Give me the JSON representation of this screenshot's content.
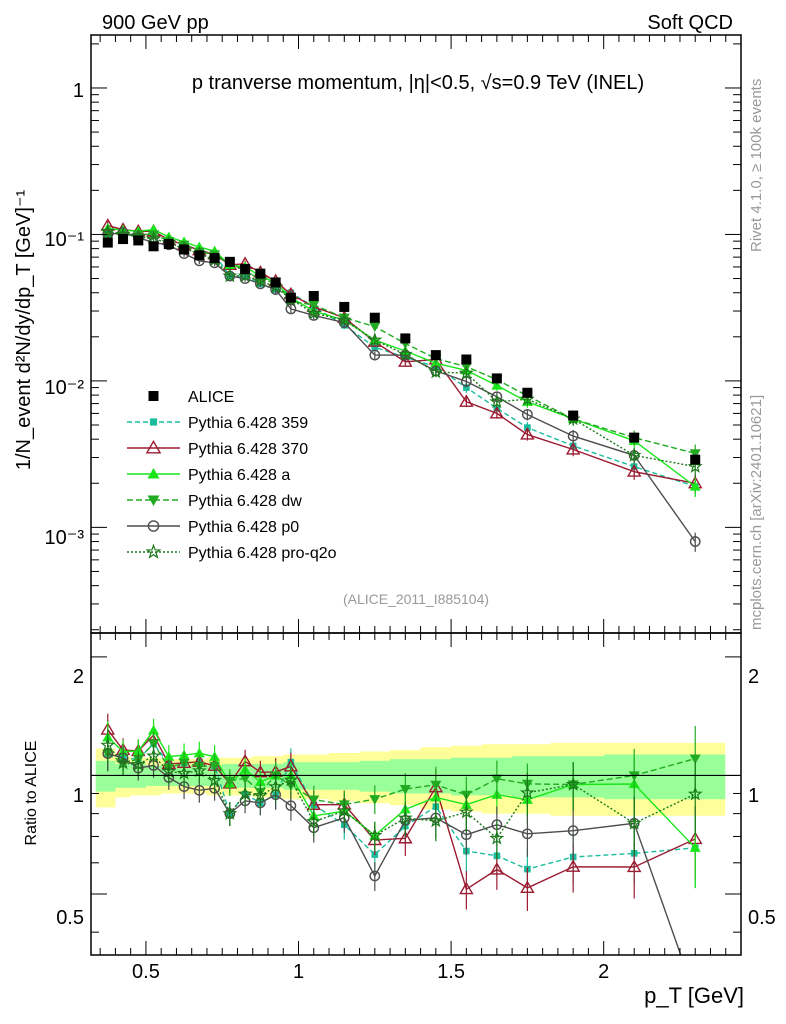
{
  "header": {
    "left": "900 GeV pp",
    "right": "Soft QCD"
  },
  "side_labels": {
    "rivet": "Rivet 4.1.0, ≥ 100k events",
    "mcplots": "mcplots.cern.ch [arXiv:2401.10621]"
  },
  "chart_data": {
    "type": "scatter",
    "title": "p tranverse momentum, |η|<0.5, √s=0.9 TeV (INEL)",
    "analysis_label": "(ALICE_2011_I885104)",
    "xlabel": "p_T [GeV]",
    "ylabel": "1/N_event d²N/dy/dp_T [GeV]⁻¹",
    "ratio_ylabel": "Ratio to ALICE",
    "xlim": [
      0.32,
      2.45
    ],
    "ylim": [
      0.00019,
      2.3
    ],
    "ratio_ylim": [
      0.35,
      2.3
    ],
    "x_ticks": [
      "0.5",
      "1",
      "1.5",
      "2"
    ],
    "y_ticks": [
      "10⁻³",
      "10⁻²",
      "10⁻¹",
      "1"
    ],
    "ratio_ticks": [
      "0.5",
      "1",
      "2"
    ],
    "x": [
      0.375,
      0.425,
      0.475,
      0.525,
      0.575,
      0.625,
      0.675,
      0.725,
      0.775,
      0.825,
      0.875,
      0.925,
      0.975,
      1.05,
      1.15,
      1.25,
      1.35,
      1.45,
      1.55,
      1.65,
      1.75,
      1.9,
      2.1,
      2.3
    ],
    "reference": {
      "name": "ALICE",
      "values": [
        0.088,
        0.093,
        0.091,
        0.083,
        0.086,
        0.079,
        0.072,
        0.069,
        0.065,
        0.058,
        0.054,
        0.047,
        0.037,
        0.038,
        0.032,
        0.027,
        0.0195,
        0.015,
        0.014,
        0.0104,
        0.0083,
        0.0058,
        0.0041,
        0.0029
      ]
    },
    "band_ratio_low": [
      0.83,
      0.88,
      0.89,
      0.89,
      0.9,
      0.9,
      0.9,
      0.89,
      0.89,
      0.89,
      0.88,
      0.88,
      0.87,
      0.87,
      0.86,
      0.85,
      0.84,
      0.82,
      0.81,
      0.8,
      0.8,
      0.79,
      0.79,
      0.79
    ],
    "band_ratio_high": [
      1.17,
      1.12,
      1.11,
      1.11,
      1.1,
      1.1,
      1.1,
      1.11,
      1.11,
      1.11,
      1.12,
      1.12,
      1.13,
      1.13,
      1.14,
      1.15,
      1.16,
      1.18,
      1.19,
      1.2,
      1.2,
      1.21,
      1.21,
      1.21
    ],
    "band_stat_low": [
      0.91,
      0.93,
      0.93,
      0.94,
      0.94,
      0.94,
      0.94,
      0.94,
      0.93,
      0.93,
      0.93,
      0.93,
      0.92,
      0.92,
      0.92,
      0.91,
      0.9,
      0.9,
      0.89,
      0.89,
      0.88,
      0.88,
      0.87,
      0.87
    ],
    "band_stat_high": [
      1.09,
      1.07,
      1.07,
      1.06,
      1.06,
      1.06,
      1.06,
      1.06,
      1.07,
      1.07,
      1.07,
      1.07,
      1.08,
      1.08,
      1.08,
      1.09,
      1.1,
      1.1,
      1.11,
      1.11,
      1.12,
      1.12,
      1.13,
      1.13
    ],
    "series": [
      {
        "name": "Pythia 6.428 359",
        "color": "#1abc9c",
        "marker": "square-small",
        "dash": "5,3",
        "values": [
          0.1,
          0.103,
          0.1,
          0.1,
          0.092,
          0.085,
          0.078,
          0.073,
          0.052,
          0.052,
          0.046,
          0.042,
          0.04,
          0.032,
          0.024,
          0.017,
          0.0145,
          0.0125,
          0.009,
          0.0065,
          0.0048,
          0.0036,
          0.0026,
          0.0019
        ],
        "errors": [
          0.07,
          0.05,
          0.05,
          0.05,
          0.05,
          0.05,
          0.05,
          0.05,
          0.05,
          0.05,
          0.05,
          0.06,
          0.06,
          0.06,
          0.06,
          0.06,
          0.07,
          0.08,
          0.08,
          0.08,
          0.09,
          0.1,
          0.12,
          0.15
        ]
      },
      {
        "name": "Pythia 6.428 370",
        "color": "#9b1b30",
        "marker": "triangle-open",
        "dash": "",
        "values": [
          0.115,
          0.108,
          0.105,
          0.105,
          0.092,
          0.085,
          0.078,
          0.073,
          0.062,
          0.063,
          0.055,
          0.048,
          0.039,
          0.032,
          0.027,
          0.0185,
          0.0135,
          0.014,
          0.0072,
          0.006,
          0.0043,
          0.0034,
          0.0024,
          0.002
        ],
        "errors": [
          0.07,
          0.05,
          0.05,
          0.05,
          0.05,
          0.05,
          0.05,
          0.05,
          0.05,
          0.05,
          0.05,
          0.06,
          0.06,
          0.06,
          0.06,
          0.06,
          0.07,
          0.08,
          0.08,
          0.08,
          0.09,
          0.1,
          0.12,
          0.15
        ]
      },
      {
        "name": "Pythia 6.428 a",
        "color": "#19e619",
        "marker": "triangle",
        "dash": "",
        "values": [
          0.11,
          0.107,
          0.105,
          0.108,
          0.096,
          0.089,
          0.082,
          0.077,
          0.062,
          0.06,
          0.052,
          0.047,
          0.037,
          0.03,
          0.026,
          0.019,
          0.016,
          0.0132,
          0.0118,
          0.0093,
          0.0072,
          0.0055,
          0.0039,
          0.0019
        ],
        "errors": [
          0.07,
          0.05,
          0.05,
          0.05,
          0.05,
          0.05,
          0.05,
          0.05,
          0.05,
          0.05,
          0.05,
          0.06,
          0.06,
          0.06,
          0.06,
          0.06,
          0.07,
          0.08,
          0.08,
          0.08,
          0.09,
          0.1,
          0.12,
          0.15
        ]
      },
      {
        "name": "Pythia 6.428 dw",
        "color": "#22aa22",
        "marker": "triangle-down",
        "dash": "6,3",
        "values": [
          0.1,
          0.1,
          0.1,
          0.1,
          0.09,
          0.085,
          0.076,
          0.073,
          0.063,
          0.057,
          0.049,
          0.047,
          0.035,
          0.033,
          0.027,
          0.0235,
          0.018,
          0.0142,
          0.0125,
          0.0102,
          0.0079,
          0.0055,
          0.0041,
          0.0032
        ],
        "errors": [
          0.07,
          0.05,
          0.05,
          0.05,
          0.05,
          0.05,
          0.05,
          0.05,
          0.05,
          0.05,
          0.05,
          0.06,
          0.06,
          0.06,
          0.06,
          0.06,
          0.07,
          0.08,
          0.08,
          0.08,
          0.09,
          0.1,
          0.12,
          0.15
        ]
      },
      {
        "name": "Pythia 6.428 p0",
        "color": "#4d4d4d",
        "marker": "circle-open",
        "dash": "",
        "values": [
          0.1,
          0.103,
          0.095,
          0.088,
          0.085,
          0.074,
          0.066,
          0.064,
          0.052,
          0.05,
          0.046,
          0.042,
          0.031,
          0.028,
          0.025,
          0.015,
          0.015,
          0.0117,
          0.0099,
          0.0078,
          0.0059,
          0.0042,
          0.0031,
          0.0008
        ],
        "errors": [
          0.07,
          0.05,
          0.05,
          0.05,
          0.05,
          0.05,
          0.05,
          0.05,
          0.05,
          0.05,
          0.05,
          0.06,
          0.06,
          0.06,
          0.06,
          0.06,
          0.07,
          0.08,
          0.08,
          0.08,
          0.09,
          0.1,
          0.12,
          0.15
        ]
      },
      {
        "name": "Pythia 6.428 pro-q2o",
        "color": "#1a7a1a",
        "marker": "star-open",
        "dash": "2,2",
        "values": [
          0.105,
          0.1,
          0.097,
          0.093,
          0.088,
          0.08,
          0.074,
          0.067,
          0.052,
          0.052,
          0.048,
          0.044,
          0.036,
          0.029,
          0.026,
          0.019,
          0.0152,
          0.0115,
          0.0113,
          0.0072,
          0.0075,
          0.0055,
          0.0031,
          0.0026
        ],
        "errors": [
          0.07,
          0.05,
          0.05,
          0.05,
          0.05,
          0.05,
          0.05,
          0.05,
          0.05,
          0.05,
          0.05,
          0.06,
          0.06,
          0.06,
          0.06,
          0.06,
          0.07,
          0.08,
          0.08,
          0.08,
          0.09,
          0.1,
          0.12,
          0.15
        ]
      }
    ]
  }
}
